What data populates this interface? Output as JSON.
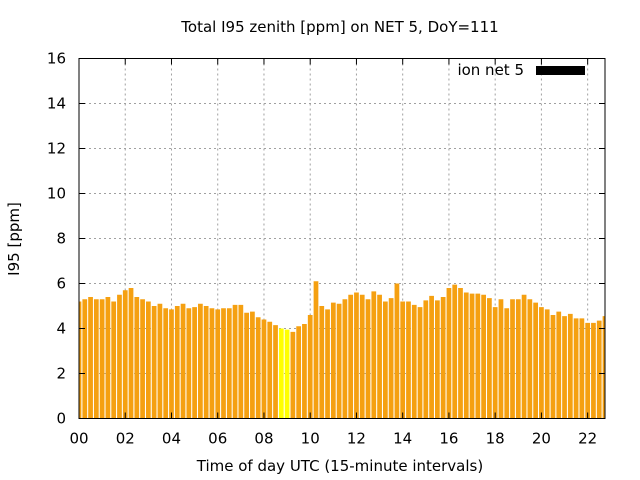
{
  "chart_data": {
    "type": "bar",
    "title": "Total I95 zenith [ppm] on NET 5, DoY=111",
    "xlabel": "Time of day UTC (15-minute intervals)",
    "ylabel": "I95 [ppm]",
    "xlim": [
      0,
      22.75
    ],
    "ylim": [
      0,
      16
    ],
    "xticks": [
      "00",
      "02",
      "04",
      "06",
      "08",
      "10",
      "12",
      "14",
      "16",
      "18",
      "20",
      "22"
    ],
    "yticks": [
      "0",
      "2",
      "4",
      "6",
      "8",
      "10",
      "12",
      "14",
      "16"
    ],
    "grid": true,
    "legend_position": "top-right",
    "series": [
      {
        "name": "ion net 5",
        "colors": {
          "normal": "#f5a011",
          "highlight": "#ffff00",
          "legend": "#000000"
        },
        "highlight_range_hours": [
          8.75,
          9.0
        ],
        "values": [
          5.2,
          5.3,
          5.4,
          5.3,
          5.3,
          5.4,
          5.2,
          5.5,
          5.7,
          5.8,
          5.4,
          5.3,
          5.2,
          5.0,
          5.1,
          4.9,
          4.85,
          5.0,
          5.1,
          4.9,
          4.95,
          5.1,
          5.0,
          4.9,
          4.85,
          4.9,
          4.9,
          5.05,
          5.05,
          4.7,
          4.75,
          4.5,
          4.4,
          4.3,
          4.15,
          4.0,
          3.95,
          3.85,
          4.1,
          4.2,
          4.6,
          6.1,
          5.0,
          4.85,
          5.15,
          5.1,
          5.3,
          5.5,
          5.6,
          5.5,
          5.3,
          5.65,
          5.5,
          5.2,
          5.35,
          6.0,
          5.2,
          5.2,
          5.05,
          4.95,
          5.25,
          5.45,
          5.25,
          5.4,
          5.8,
          5.95,
          5.8,
          5.6,
          5.55,
          5.55,
          5.5,
          5.35,
          4.95,
          5.3,
          4.9,
          5.3,
          5.3,
          5.5,
          5.3,
          5.15,
          4.95,
          4.85,
          4.6,
          4.75,
          4.55,
          4.65,
          4.45,
          4.45,
          4.25,
          4.25,
          4.35,
          4.55,
          4.7
        ]
      }
    ]
  }
}
